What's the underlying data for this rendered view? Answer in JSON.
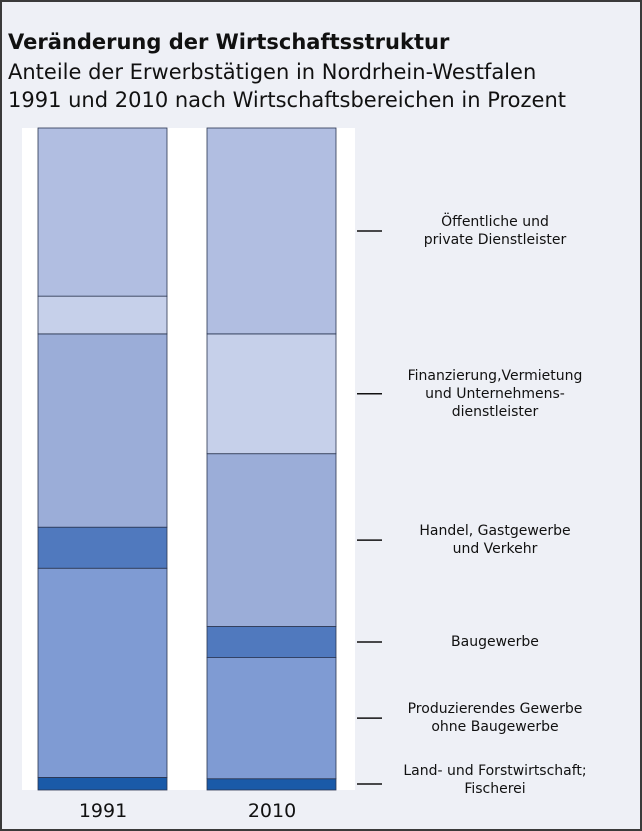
{
  "chart_data": {
    "type": "stacked_bar",
    "title": "Veränderung der Wirtschaftsstruktur",
    "subtitle": "Anteile der Erwerbstätigen in Nordrhein-Westfalen\n1991 und 2010 nach Wirtschaftsbereichen in Prozent",
    "categories": [
      "1991",
      "2010"
    ],
    "ylim": [
      0,
      100
    ],
    "series": [
      {
        "name": "Land- und Forstwirtschaft;\nFischerei",
        "color": "#1a5aa8",
        "values": [
          1.9,
          1.7
        ]
      },
      {
        "name": "Produzierendes Gewerbe\nohne Baugewerbe",
        "color": "#7f9bd3",
        "values": [
          31.6,
          18.3
        ]
      },
      {
        "name": "Baugewerbe",
        "color": "#5079be",
        "values": [
          6.2,
          4.7
        ]
      },
      {
        "name": "Handel, Gastgewerbe\nund Verkehr",
        "color": "#9badd8",
        "values": [
          29.2,
          26.1
        ]
      },
      {
        "name": "Finanzierung,Vermietung\nund Unternehmens-\ndienstleister",
        "color": "#c6d0ea",
        "values": [
          5.7,
          18.1
        ]
      },
      {
        "name": "Öffentliche und\nprivate Dienstleister",
        "color": "#b1bee1",
        "values": [
          25.4,
          31.1
        ]
      }
    ]
  }
}
